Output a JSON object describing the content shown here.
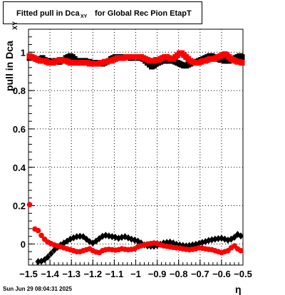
{
  "title": {
    "main": "Fitted pull in Dca",
    "sub": "XY",
    "rest": "for Global Rec Pion EtapT"
  },
  "footer": {
    "timestamp": "Sun Jun 29 08:04:31 2025"
  },
  "colors": {
    "black": "#000000",
    "red": "#ff0000",
    "grid": "#000000"
  },
  "chart_data": {
    "type": "scatter",
    "title": "Fitted pull in Dca XY for Global Rec Pion EtapT",
    "xlabel": "η",
    "ylabel": "pull in Dca",
    "ylabel_sub": "XY",
    "xlim": [
      -1.5,
      -0.5
    ],
    "ylim": [
      -0.11,
      1.12
    ],
    "grid": true,
    "x_ticks": [
      -1.5,
      -1.4,
      -1.3,
      -1.2,
      -1.1,
      -1.0,
      -0.9,
      -0.8,
      -0.7,
      -0.6,
      -0.5
    ],
    "x_tick_labels": [
      "−1.5",
      "−1.4",
      "−1.3",
      "−1.2",
      "−1.1",
      "−1",
      "−0.9",
      "−0.8",
      "−0.7",
      "−0.6",
      "−0.5"
    ],
    "y_ticks": [
      0,
      0.2,
      0.4,
      0.6,
      0.8,
      1.0
    ],
    "y_tick_labels": [
      "0",
      "0.2",
      "0.4",
      "0.6",
      "0.8",
      "1"
    ],
    "series": [
      {
        "color": "#000000",
        "marker": "square",
        "x": [
          -1.495,
          -1.485,
          -1.475,
          -1.465,
          -1.455,
          -1.445,
          -1.435,
          -1.425,
          -1.415,
          -1.405,
          -1.395,
          -1.385,
          -1.375,
          -1.365,
          -1.355,
          -1.345,
          -1.335,
          -1.325,
          -1.315,
          -1.305,
          -1.295,
          -1.285,
          -1.275,
          -1.265,
          -1.255,
          -1.245,
          -1.235,
          -1.225,
          -1.215,
          -1.205,
          -1.195,
          -1.185,
          -1.175,
          -1.165,
          -1.155,
          -1.145,
          -1.135,
          -1.125,
          -1.115,
          -1.105,
          -1.095,
          -1.085,
          -1.075,
          -1.065,
          -1.055,
          -1.045,
          -1.035,
          -1.025,
          -1.015,
          -1.005,
          -0.995,
          -0.985,
          -0.975,
          -0.965,
          -0.955,
          -0.945,
          -0.935,
          -0.925,
          -0.915,
          -0.905,
          -0.895,
          -0.885,
          -0.875,
          -0.865,
          -0.855,
          -0.845,
          -0.835,
          -0.825,
          -0.815,
          -0.805,
          -0.795,
          -0.785,
          -0.775,
          -0.765,
          -0.755,
          -0.745,
          -0.735,
          -0.725,
          -0.715,
          -0.705,
          -0.695,
          -0.685,
          -0.675,
          -0.665,
          -0.655,
          -0.645,
          -0.635,
          -0.625,
          -0.615,
          -0.605,
          -0.595,
          -0.585,
          -0.575,
          -0.565,
          -0.555,
          -0.545,
          -0.535,
          -0.525,
          -0.515,
          -0.505
        ],
        "y": [
          0.97,
          0.975,
          0.97,
          0.965,
          0.96,
          0.965,
          0.97,
          0.96,
          0.955,
          0.955,
          0.95,
          0.95,
          0.955,
          0.95,
          0.95,
          0.955,
          0.96,
          0.97,
          0.975,
          0.98,
          0.975,
          0.965,
          0.955,
          0.955,
          0.95,
          0.955,
          0.955,
          0.95,
          0.95,
          0.945,
          0.945,
          0.945,
          0.945,
          0.945,
          0.94,
          0.945,
          0.95,
          0.955,
          0.965,
          0.97,
          0.975,
          0.975,
          0.975,
          0.97,
          0.975,
          0.975,
          0.975,
          0.97,
          0.97,
          0.975,
          0.975,
          0.97,
          0.97,
          0.965,
          0.955,
          0.945,
          0.935,
          0.925,
          0.93,
          0.94,
          0.945,
          0.95,
          0.955,
          0.955,
          0.955,
          0.955,
          0.96,
          0.955,
          0.95,
          0.945,
          0.94,
          0.935,
          0.93,
          0.93,
          0.935,
          0.94,
          0.945,
          0.95,
          0.95,
          0.955,
          0.96,
          0.965,
          0.97,
          0.975,
          0.98,
          0.98,
          0.975,
          0.97,
          0.965,
          0.96,
          0.96,
          0.955,
          0.955,
          0.955,
          0.96,
          0.965,
          0.97,
          0.975,
          0.98,
          0.975
        ]
      },
      {
        "color": "#ff0000",
        "marker": "square",
        "x": [
          -1.495,
          -1.485,
          -1.475,
          -1.465,
          -1.455,
          -1.445,
          -1.435,
          -1.425,
          -1.415,
          -1.405,
          -1.395,
          -1.385,
          -1.375,
          -1.365,
          -1.355,
          -1.345,
          -1.335,
          -1.325,
          -1.315,
          -1.305,
          -1.295,
          -1.285,
          -1.275,
          -1.265,
          -1.255,
          -1.245,
          -1.235,
          -1.225,
          -1.215,
          -1.205,
          -1.195,
          -1.185,
          -1.175,
          -1.165,
          -1.155,
          -1.145,
          -1.135,
          -1.125,
          -1.115,
          -1.105,
          -1.095,
          -1.085,
          -1.075,
          -1.065,
          -1.055,
          -1.045,
          -1.035,
          -1.025,
          -1.015,
          -1.005,
          -0.995,
          -0.985,
          -0.975,
          -0.965,
          -0.955,
          -0.945,
          -0.935,
          -0.925,
          -0.915,
          -0.905,
          -0.895,
          -0.885,
          -0.875,
          -0.865,
          -0.855,
          -0.845,
          -0.835,
          -0.825,
          -0.815,
          -0.805,
          -0.795,
          -0.785,
          -0.775,
          -0.765,
          -0.755,
          -0.745,
          -0.735,
          -0.725,
          -0.715,
          -0.705,
          -0.695,
          -0.685,
          -0.675,
          -0.665,
          -0.655,
          -0.645,
          -0.635,
          -0.625,
          -0.615,
          -0.605,
          -0.595,
          -0.585,
          -0.575,
          -0.565,
          -0.555,
          -0.545,
          -0.535,
          -0.525,
          -0.515,
          -0.505
        ],
        "y": [
          0.98,
          0.975,
          0.97,
          0.965,
          0.96,
          0.955,
          0.955,
          0.955,
          0.95,
          0.945,
          0.945,
          0.945,
          0.95,
          0.955,
          0.96,
          0.96,
          0.955,
          0.955,
          0.95,
          0.945,
          0.945,
          0.945,
          0.945,
          0.945,
          0.945,
          0.945,
          0.945,
          0.945,
          0.94,
          0.94,
          0.94,
          0.94,
          0.94,
          0.945,
          0.945,
          0.95,
          0.95,
          0.955,
          0.955,
          0.96,
          0.965,
          0.97,
          0.97,
          0.97,
          0.97,
          0.975,
          0.975,
          0.975,
          0.975,
          0.975,
          0.975,
          0.975,
          0.975,
          0.97,
          0.965,
          0.96,
          0.955,
          0.955,
          0.955,
          0.96,
          0.96,
          0.965,
          0.97,
          0.975,
          0.975,
          0.97,
          0.965,
          0.965,
          0.975,
          0.985,
          0.995,
          0.995,
          0.985,
          0.975,
          0.965,
          0.955,
          0.95,
          0.945,
          0.945,
          0.945,
          0.95,
          0.955,
          0.955,
          0.96,
          0.965,
          0.965,
          0.965,
          0.97,
          0.975,
          0.98,
          0.985,
          0.99,
          0.985,
          0.975,
          0.965,
          0.96,
          0.955,
          0.95,
          0.95,
          0.945
        ]
      },
      {
        "color": "#000000",
        "marker": "diamond",
        "x": [
          -1.455,
          -1.44,
          -1.425,
          -1.41,
          -1.395,
          -1.38,
          -1.365,
          -1.35,
          -1.335,
          -1.32,
          -1.305,
          -1.29,
          -1.275,
          -1.26,
          -1.245,
          -1.23,
          -1.215,
          -1.2,
          -1.185,
          -1.17,
          -1.155,
          -1.14,
          -1.125,
          -1.11,
          -1.095,
          -1.08,
          -1.065,
          -1.05,
          -1.035,
          -1.02,
          -1.005,
          -0.99,
          -0.975,
          -0.96,
          -0.945,
          -0.93,
          -0.915,
          -0.9,
          -0.885,
          -0.87,
          -0.855,
          -0.84,
          -0.825,
          -0.81,
          -0.795,
          -0.78,
          -0.765,
          -0.75,
          -0.735,
          -0.72,
          -0.705,
          -0.69,
          -0.675,
          -0.66,
          -0.645,
          -0.63,
          -0.615,
          -0.6,
          -0.585,
          -0.57,
          -0.555,
          -0.54,
          -0.525,
          -0.51
        ],
        "y": [
          -0.092,
          -0.09,
          -0.082,
          -0.068,
          -0.05,
          -0.032,
          -0.018,
          -0.005,
          0.005,
          0.015,
          0.025,
          0.032,
          0.038,
          0.04,
          0.038,
          0.025,
          0.012,
          0.005,
          0.015,
          0.028,
          0.04,
          0.045,
          0.042,
          0.038,
          0.035,
          0.03,
          0.035,
          0.038,
          0.032,
          0.025,
          0.02,
          0.015,
          0.005,
          -0.005,
          -0.01,
          -0.012,
          -0.012,
          -0.008,
          -0.002,
          0.005,
          0.008,
          0.01,
          0.005,
          -0.002,
          -0.005,
          -0.008,
          -0.01,
          -0.008,
          -0.005,
          -0.002,
          0.002,
          0.008,
          0.012,
          0.018,
          0.022,
          0.025,
          0.028,
          0.03,
          0.025,
          0.02,
          0.025,
          0.035,
          0.05,
          0.042
        ]
      },
      {
        "color": "#ff0000",
        "marker": "circle",
        "x": [
          -1.495,
          -1.47,
          -1.455,
          -1.44,
          -1.425,
          -1.41,
          -1.395,
          -1.38,
          -1.365,
          -1.35,
          -1.335,
          -1.32,
          -1.305,
          -1.29,
          -1.275,
          -1.26,
          -1.245,
          -1.23,
          -1.215,
          -1.2,
          -1.185,
          -1.17,
          -1.155,
          -1.14,
          -1.125,
          -1.11,
          -1.095,
          -1.08,
          -1.065,
          -1.05,
          -1.035,
          -1.02,
          -1.005,
          -0.99,
          -0.975,
          -0.96,
          -0.945,
          -0.93,
          -0.915,
          -0.9,
          -0.885,
          -0.87,
          -0.855,
          -0.84,
          -0.825,
          -0.81,
          -0.795,
          -0.78,
          -0.765,
          -0.75,
          -0.735,
          -0.72,
          -0.705,
          -0.69,
          -0.675,
          -0.66,
          -0.645,
          -0.63,
          -0.615,
          -0.6,
          -0.585,
          -0.57,
          -0.555,
          -0.54,
          -0.525,
          -0.51
        ],
        "y": [
          0.205,
          0.078,
          0.07,
          0.045,
          0.025,
          0.01,
          0.002,
          -0.005,
          -0.01,
          -0.015,
          -0.02,
          -0.025,
          -0.03,
          -0.035,
          -0.04,
          -0.04,
          -0.035,
          -0.03,
          -0.025,
          -0.035,
          -0.042,
          -0.045,
          -0.035,
          -0.03,
          -0.028,
          -0.03,
          -0.032,
          -0.03,
          -0.025,
          -0.028,
          -0.03,
          -0.028,
          -0.025,
          -0.015,
          -0.01,
          -0.005,
          0.0,
          0.002,
          0.005,
          0.002,
          -0.005,
          -0.01,
          -0.012,
          -0.015,
          -0.018,
          -0.02,
          -0.022,
          -0.025,
          -0.028,
          -0.03,
          -0.028,
          -0.025,
          -0.02,
          -0.022,
          -0.025,
          -0.028,
          -0.03,
          -0.035,
          -0.04,
          -0.045,
          -0.04,
          -0.035,
          -0.02,
          -0.01,
          -0.025,
          -0.035
        ]
      }
    ]
  }
}
